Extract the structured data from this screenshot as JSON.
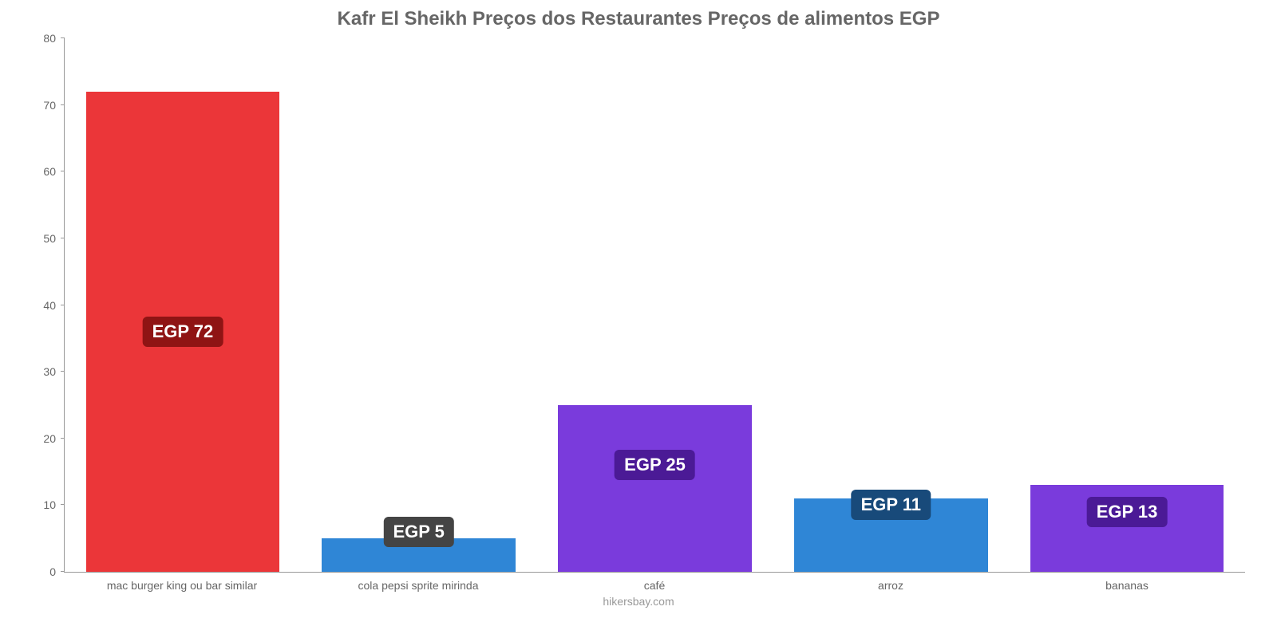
{
  "chart": {
    "type": "bar",
    "title": "Kafr El Sheikh Preços dos Restaurantes Preços de alimentos EGP",
    "title_fontsize": 24,
    "title_color": "#666666",
    "credit": "hikersbay.com",
    "credit_color": "#999999",
    "background_color": "#ffffff",
    "axis_color": "#999999",
    "tick_label_color": "#666666",
    "tick_label_fontsize": 14,
    "ylim": [
      0,
      80
    ],
    "ytick_step": 10,
    "yticks": [
      0,
      10,
      20,
      30,
      40,
      50,
      60,
      70,
      80
    ],
    "bar_width_pct": 82,
    "currency_prefix": "EGP ",
    "value_label_fontsize": 22,
    "value_label_text_color": "#ffffff",
    "categories": [
      "mac burger king ou bar similar",
      "cola pepsi sprite mirinda",
      "café",
      "arroz",
      "bananas"
    ],
    "values": [
      72,
      5,
      25,
      11,
      13
    ],
    "bar_colors": [
      "#eb3639",
      "#2f86d6",
      "#7a3bdc",
      "#2f86d6",
      "#7a3bdc"
    ],
    "value_label_bg_colors": [
      "#8f1414",
      "#444444",
      "#4b1a96",
      "#184a7a",
      "#4b1a96"
    ],
    "value_label_y_offsets_value_units": [
      36,
      6,
      16,
      10,
      9
    ]
  }
}
